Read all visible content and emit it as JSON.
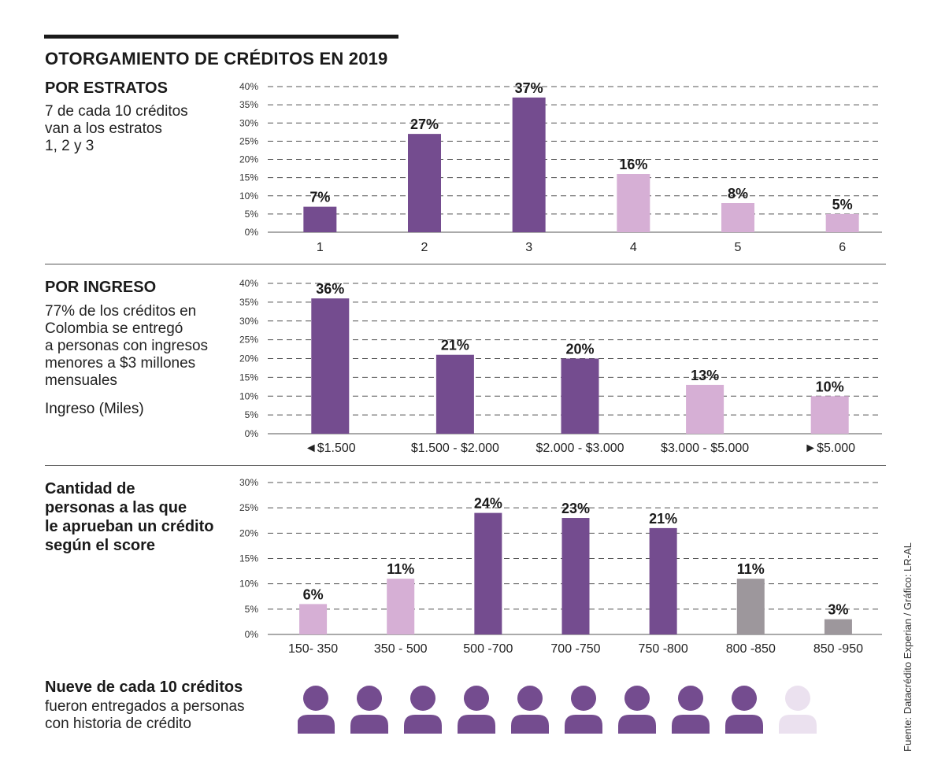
{
  "header": {
    "title": "OTORGAMIENTO DE CRÉDITOS EN 2019"
  },
  "sections": {
    "estratos": {
      "title": "POR ESTRATOS",
      "description": "7 de cada 10 créditos\nvan a los estratos\n1, 2 y 3"
    },
    "ingreso": {
      "title": "POR INGRESO",
      "description": "77% de los créditos en\nColombia se entregó\na personas con ingresos\nmenores a $3 millones\nmensuales",
      "unit_label": "Ingreso (Miles)"
    },
    "score": {
      "title": "Cantidad de\npersonas a las que\nle aprueban un crédito\nsegún el score"
    },
    "historia": {
      "title": "Nueve de cada 10 créditos",
      "description": "fueron entregados a personas\ncon historia de crédito"
    }
  },
  "source": "Fuente: Datacrédito Experian / Gráfico: LR-AL",
  "colors": {
    "dark_purple": "#744c8f",
    "light_purple": "#d6afd5",
    "gray": "#9d979c",
    "pale_purple": "#ebe1ef",
    "grid": "#555555"
  },
  "chart_data": [
    {
      "type": "bar",
      "categories": [
        "1",
        "2",
        "3",
        "4",
        "5",
        "6"
      ],
      "values": [
        7,
        27,
        37,
        16,
        8,
        5
      ],
      "data_labels": [
        "7%",
        "27%",
        "37%",
        "16%",
        "8%",
        "5%"
      ],
      "bar_colors": [
        "dark_purple",
        "dark_purple",
        "dark_purple",
        "light_purple",
        "light_purple",
        "light_purple"
      ],
      "yticks": [
        0,
        5,
        10,
        15,
        20,
        25,
        30,
        35,
        40
      ],
      "ytick_labels": [
        "0%",
        "5%",
        "10%",
        "15%",
        "20%",
        "25%",
        "30%",
        "35%",
        "40%"
      ],
      "ylim": [
        0,
        40
      ],
      "grid": "dashed"
    },
    {
      "type": "bar",
      "categories": [
        "◄$1.500",
        "$1.500 - $2.000",
        "$2.000 - $3.000",
        "$3.000 - $5.000",
        "►$5.000"
      ],
      "values": [
        36,
        21,
        20,
        13,
        10
      ],
      "data_labels": [
        "36%",
        "21%",
        "20%",
        "13%",
        "10%"
      ],
      "bar_colors": [
        "dark_purple",
        "dark_purple",
        "dark_purple",
        "light_purple",
        "light_purple"
      ],
      "yticks": [
        0,
        5,
        10,
        15,
        20,
        25,
        30,
        35,
        40
      ],
      "ytick_labels": [
        "0%",
        "5%",
        "10%",
        "15%",
        "20%",
        "25%",
        "30%",
        "35%",
        "40%"
      ],
      "ylim": [
        0,
        40
      ],
      "grid": "dashed"
    },
    {
      "type": "bar",
      "categories": [
        "150- 350",
        "350 - 500",
        "500 -700",
        "700 -750",
        "750 -800",
        "800 -850",
        "850 -950"
      ],
      "values": [
        6,
        11,
        24,
        23,
        21,
        11,
        3
      ],
      "data_labels": [
        "6%",
        "11%",
        "24%",
        "23%",
        "21%",
        "11%",
        "3%"
      ],
      "bar_colors": [
        "light_purple",
        "light_purple",
        "dark_purple",
        "dark_purple",
        "dark_purple",
        "gray",
        "gray"
      ],
      "yticks": [
        0,
        5,
        10,
        15,
        20,
        25,
        30
      ],
      "ytick_labels": [
        "0%",
        "5%",
        "10%",
        "15%",
        "20%",
        "25%",
        "30%"
      ],
      "ylim": [
        0,
        30
      ],
      "grid": "dashed"
    },
    {
      "type": "pictogram",
      "total": 10,
      "highlighted": 9,
      "icon": "person-icon",
      "colors": [
        "dark_purple",
        "pale_purple"
      ]
    }
  ]
}
